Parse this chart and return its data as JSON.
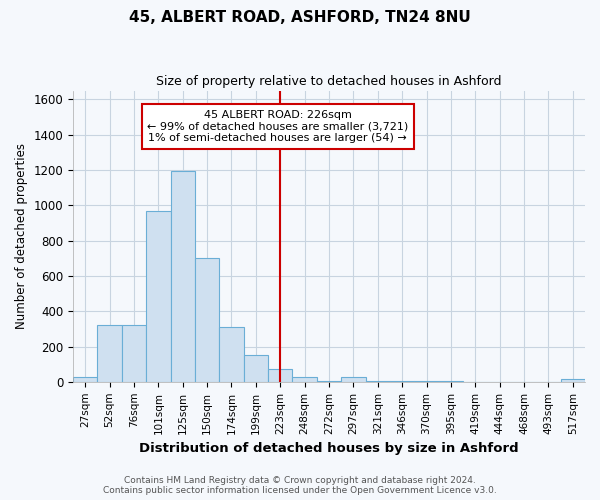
{
  "title_line1": "45, ALBERT ROAD, ASHFORD, TN24 8NU",
  "title_line2": "Size of property relative to detached houses in Ashford",
  "xlabel": "Distribution of detached houses by size in Ashford",
  "ylabel": "Number of detached properties",
  "bar_labels": [
    "27sqm",
    "52sqm",
    "76sqm",
    "101sqm",
    "125sqm",
    "150sqm",
    "174sqm",
    "199sqm",
    "223sqm",
    "248sqm",
    "272sqm",
    "297sqm",
    "321sqm",
    "346sqm",
    "370sqm",
    "395sqm",
    "419sqm",
    "444sqm",
    "468sqm",
    "493sqm",
    "517sqm"
  ],
  "bar_heights": [
    27,
    320,
    320,
    970,
    1195,
    700,
    310,
    150,
    75,
    25,
    5,
    25,
    5,
    5,
    5,
    5,
    0,
    0,
    0,
    0,
    15
  ],
  "bar_color": "#cfe0f0",
  "bar_edgecolor": "#6aaed6",
  "red_line_index": 8,
  "red_line_color": "#cc0000",
  "ylim": [
    0,
    1650
  ],
  "yticks": [
    0,
    200,
    400,
    600,
    800,
    1000,
    1200,
    1400,
    1600
  ],
  "annotation_title": "45 ALBERT ROAD: 226sqm",
  "annotation_line1": "← 99% of detached houses are smaller (3,721)",
  "annotation_line2": "1% of semi-detached houses are larger (54) →",
  "annotation_box_edgecolor": "#cc0000",
  "footer_line1": "Contains HM Land Registry data © Crown copyright and database right 2024.",
  "footer_line2": "Contains public sector information licensed under the Open Government Licence v3.0.",
  "bg_color": "#f5f8fc",
  "plot_bg_color": "#f5f8fc",
  "grid_color": "#c8d4e0"
}
